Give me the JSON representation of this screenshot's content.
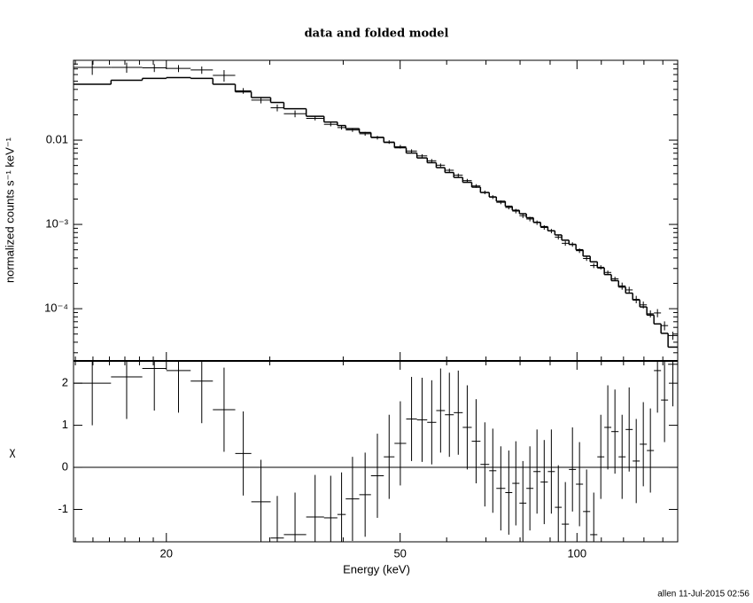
{
  "chart_data": [
    {
      "type": "spectrum",
      "title": "data and folded model",
      "ylabel": "normalized counts s⁻¹ keV⁻¹",
      "bins": [
        13.9,
        16.1,
        18.2,
        20.0,
        22.0,
        24.0,
        26.2,
        27.9,
        30.1,
        31.7,
        34.6,
        37.1,
        39.1,
        40.4,
        42.6,
        44.6,
        46.9,
        48.9,
        51.2,
        53.4,
        55.6,
        57.6,
        59.6,
        61.7,
        63.9,
        66.2,
        68.5,
        70.9,
        72.9,
        75.5,
        77.6,
        79.8,
        82.0,
        84.3,
        86.7,
        89.2,
        91.7,
        94.2,
        96.9,
        99.6,
        102.4,
        105.3,
        108.3,
        111.3,
        114.4,
        117.7,
        121.0,
        124.4,
        127.9,
        131.5,
        135.2,
        139.0,
        142.9,
        148.4
      ],
      "data": [
        0.073,
        0.073,
        0.072,
        0.071,
        0.068,
        0.0586,
        0.0385,
        0.0299,
        0.0242,
        0.0206,
        0.0181,
        0.0154,
        0.0141,
        0.0132,
        0.0119,
        0.0107,
        0.0095,
        0.00837,
        0.00743,
        0.0065,
        0.00569,
        0.00504,
        0.00439,
        0.00384,
        0.00331,
        0.00286,
        0.0024,
        0.00211,
        0.00183,
        0.00159,
        0.00144,
        0.00127,
        0.00116,
        0.00105,
        0.00092,
        0.000835,
        0.000707,
        0.000597,
        0.000578,
        0.000488,
        0.000394,
        0.000325,
        0.00031,
        0.000269,
        0.000226,
        0.000186,
        0.000167,
        0.000129,
        0.000111,
        8.7e-05,
        8.9e-05,
        6.3e-05,
        4.8e-05
      ],
      "data_errors": [
        0.0135,
        0.01,
        0.0077,
        0.0068,
        0.0068,
        0.0092,
        0.003,
        0.0026,
        0.00224,
        0.0019,
        0.00096,
        0.00082,
        0.00075,
        0.00069,
        0.00062,
        0.00054,
        0.00047,
        0.00041,
        0.00035,
        0.00031,
        0.00027,
        0.00024,
        0.00021,
        0.00018,
        0.00016,
        0.00014,
        0.00012,
        0.00011,
        9.4e-05,
        8.2e-05,
        8.8e-05,
        8e-05,
        7.2e-05,
        6.4e-05,
        5.6e-05,
        5e-05,
        4.5e-05,
        3.9e-05,
        3.5e-05,
        3e-05,
        2.5e-05,
        2.2e-05,
        1.8e-05,
        1.5e-05,
        1.3e-05,
        1.8e-05,
        1.5e-05,
        1.3e-05,
        1.05e-05,
        8.4e-06,
        9.9e-06,
        7.7e-06,
        5.3e-06
      ],
      "model": [
        0.046,
        0.0514,
        0.054,
        0.0553,
        0.054,
        0.046,
        0.0375,
        0.032,
        0.028,
        0.0236,
        0.0192,
        0.0164,
        0.0149,
        0.0137,
        0.0123,
        0.0108,
        0.0094,
        0.00814,
        0.00703,
        0.00615,
        0.0054,
        0.00472,
        0.00413,
        0.00361,
        0.00316,
        0.00277,
        0.00239,
        0.00212,
        0.00188,
        0.00164,
        0.00147,
        0.00134,
        0.0012,
        0.00106,
        0.00094,
        0.00084,
        0.00075,
        0.00065,
        0.00058,
        0.0005,
        0.00042,
        0.00036,
        0.000305,
        0.000254,
        0.000215,
        0.000181,
        0.000153,
        0.000127,
        0.000105,
        8.4e-05,
        6.6e-05,
        5.1e-05,
        3.5e-05
      ],
      "log_y": true,
      "color": "#000000",
      "xlim": [
        13.9,
        148.4
      ],
      "xticks": [
        20,
        50,
        100
      ],
      "xminorticks": [
        14,
        15,
        16,
        17,
        18,
        19,
        30,
        40,
        60,
        70,
        80,
        90,
        110,
        120,
        130,
        140
      ],
      "ylim": [
        2.4e-05,
        0.0886
      ],
      "yticks": [
        {
          "value": 0.0001,
          "label": "10⁻⁴"
        },
        {
          "value": 0.001,
          "label": "10⁻³"
        },
        0.01
      ],
      "yminorticks": [
        3e-05,
        4e-05,
        5e-05,
        6e-05,
        7e-05,
        8e-05,
        9e-05,
        0.0002,
        0.0003,
        0.0004,
        0.0005,
        0.0006,
        0.0007,
        0.0008,
        0.0009,
        0.002,
        0.003,
        0.004,
        0.005,
        0.006,
        0.007,
        0.008,
        0.009,
        0.02,
        0.03,
        0.04,
        0.05,
        0.06,
        0.07,
        0.08
      ]
    },
    {
      "type": "residuals",
      "xlabel": "Energy (keV)",
      "ylabel": "χ",
      "color": "#000000",
      "values": [
        2.0,
        2.15,
        2.35,
        2.3,
        2.05,
        1.37,
        0.33,
        -0.82,
        -1.68,
        -1.6,
        -1.18,
        -1.2,
        -1.12,
        -0.75,
        -0.65,
        -0.2,
        0.25,
        0.57,
        1.15,
        1.13,
        1.07,
        1.35,
        1.25,
        1.3,
        0.95,
        0.62,
        0.07,
        -0.08,
        -0.5,
        -0.6,
        -0.38,
        -0.85,
        -0.5,
        -0.1,
        -0.35,
        -0.1,
        -0.95,
        -1.35,
        -0.05,
        -0.4,
        -1.05,
        -1.6,
        0.25,
        0.95,
        0.85,
        0.25,
        0.9,
        0.15,
        0.55,
        0.4,
        2.3,
        1.6,
        2.45
      ],
      "errors": [
        1,
        1,
        1,
        1,
        1,
        1,
        1,
        1,
        1,
        1,
        1,
        1,
        1,
        1,
        1,
        1,
        1,
        1,
        1,
        1,
        1,
        1,
        1,
        1,
        1,
        1,
        1,
        1,
        1,
        1,
        1,
        1,
        1,
        1,
        1,
        1,
        1,
        1,
        1,
        1,
        1,
        1,
        1,
        1,
        1,
        1,
        1,
        1,
        1,
        1,
        1,
        1,
        1
      ],
      "ylim": [
        -1.77,
        2.53
      ],
      "yticks": [
        -1,
        0,
        1,
        2
      ],
      "reference_line": {
        "value": 0,
        "color": "#22cc22"
      }
    }
  ],
  "footer": "allen 11-Jul-2015 02:56"
}
